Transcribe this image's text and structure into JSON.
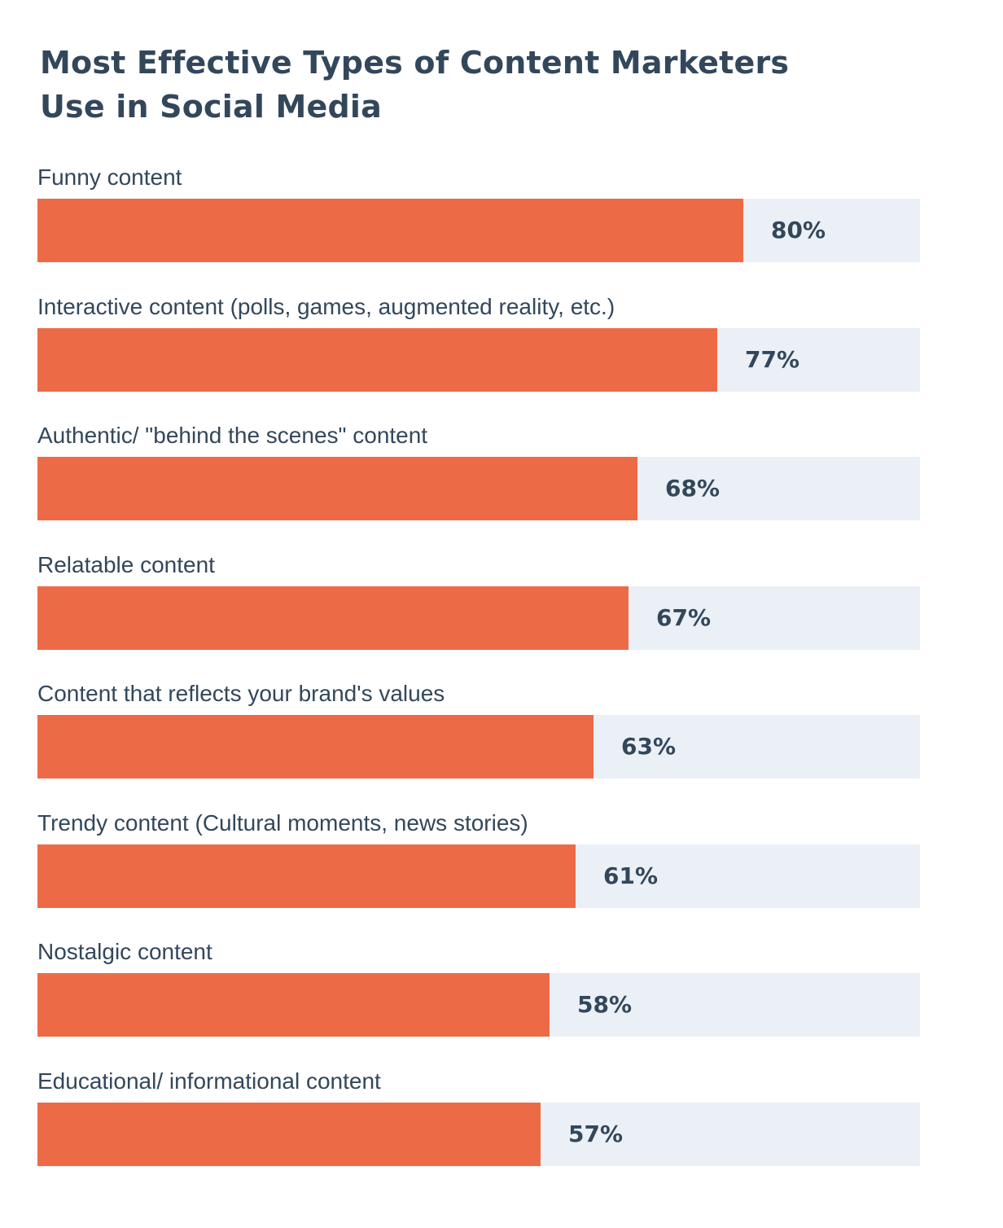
{
  "title_lines": [
    "Most Effective Types of Content Marketers",
    "Use in Social Media"
  ],
  "colors": {
    "bar": "#ed6a47",
    "track": "#eaf0f6",
    "text": "#33475b"
  },
  "chart_data": {
    "type": "bar",
    "orientation": "horizontal",
    "title": "Most Effective Types of Content Marketers Use in Social Media",
    "xlim": [
      0,
      100
    ],
    "grid": false,
    "categories": [
      "Funny content",
      "Interactive content (polls, games, augmented reality, etc.)",
      "Authentic/ \"behind the scenes\" content",
      "Relatable content",
      "Content that reflects your brand's values",
      "Trendy content (Cultural moments, news stories)",
      "Nostalgic content",
      "Educational/ informational content"
    ],
    "values": [
      80,
      77,
      68,
      67,
      63,
      61,
      58,
      57
    ],
    "value_labels": [
      "80%",
      "77%",
      "68%",
      "67%",
      "63%",
      "61%",
      "58%",
      "57%"
    ]
  }
}
